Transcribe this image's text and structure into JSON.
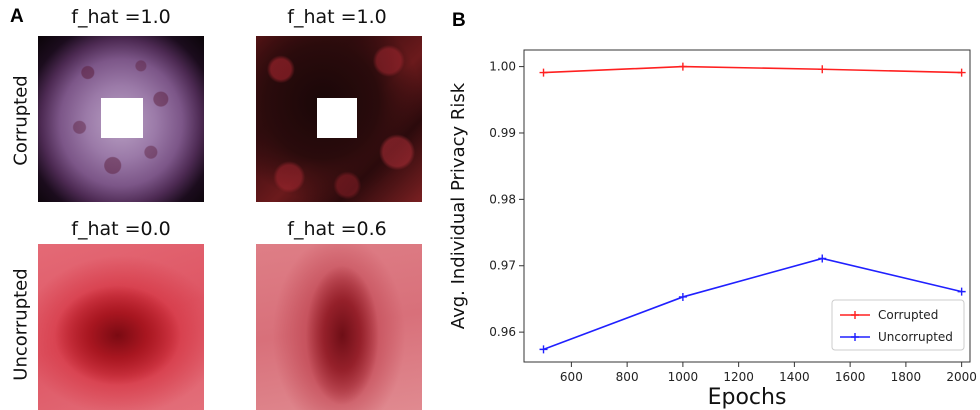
{
  "panel_a": {
    "letter": "A",
    "images": [
      {
        "title": "f_hat =1.0"
      },
      {
        "title": "f_hat =1.0"
      },
      {
        "title": "f_hat =0.0"
      },
      {
        "title": "f_hat =0.6"
      }
    ],
    "row_labels": [
      "Corrupted",
      "Uncorrupted"
    ]
  },
  "chart_data": {
    "type": "line",
    "panel_letter": "B",
    "xlabel": "Epochs",
    "ylabel": "Avg. Individual Privacy Risk",
    "xlim": [
      430,
      2030
    ],
    "ylim": [
      0.9555,
      1.0025
    ],
    "xticks": [
      600,
      800,
      1000,
      1200,
      1400,
      1600,
      1800,
      2000
    ],
    "yticks": [
      0.96,
      0.97,
      0.98,
      0.99,
      1.0
    ],
    "ytick_labels": [
      "0.96",
      "0.97",
      "0.98",
      "0.99",
      "1.00"
    ],
    "grid": false,
    "legend_position": "bottom-right",
    "series": [
      {
        "name": "Corrupted",
        "color": "#ff2020",
        "x": [
          500,
          1000,
          1500,
          2000
        ],
        "values": [
          0.9991,
          1.0,
          0.9996,
          0.9991
        ]
      },
      {
        "name": "Uncorrupted",
        "color": "#2020ff",
        "x": [
          500,
          1000,
          1500,
          2000
        ],
        "values": [
          0.9574,
          0.9653,
          0.9711,
          0.9661
        ]
      }
    ]
  }
}
